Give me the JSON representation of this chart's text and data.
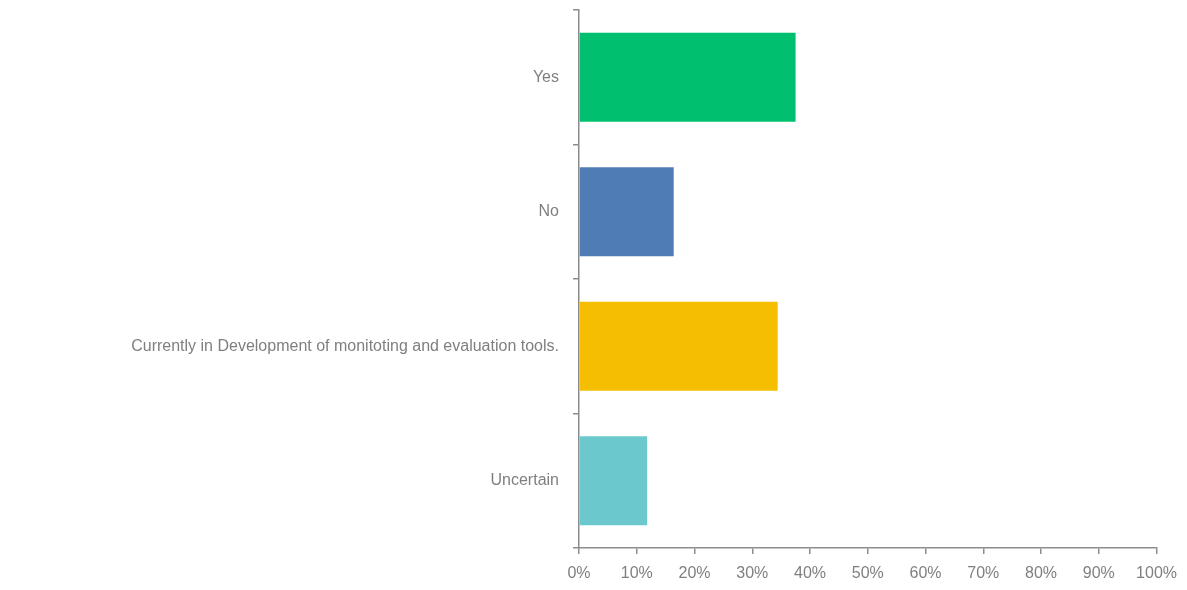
{
  "chart_data": {
    "type": "bar",
    "orientation": "horizontal",
    "categories": [
      "Yes",
      "No",
      "Currently in Development of monitoting and evaluation tools.",
      "Uncertain"
    ],
    "values": [
      37.5,
      16.4,
      34.4,
      11.8
    ],
    "colors": [
      "#00bf6f",
      "#507cb6",
      "#f5be00",
      "#6bc8cd"
    ],
    "xlim": [
      0,
      100
    ],
    "xticks": [
      {
        "value": 0,
        "label": "0%"
      },
      {
        "value": 10,
        "label": "10%"
      },
      {
        "value": 20,
        "label": "20%"
      },
      {
        "value": 30,
        "label": "30%"
      },
      {
        "value": 40,
        "label": "40%"
      },
      {
        "value": 50,
        "label": "50%"
      },
      {
        "value": 60,
        "label": "60%"
      },
      {
        "value": 70,
        "label": "70%"
      },
      {
        "value": 80,
        "label": "80%"
      },
      {
        "value": 90,
        "label": "90%"
      },
      {
        "value": 100,
        "label": "100%"
      }
    ],
    "grid": false
  }
}
